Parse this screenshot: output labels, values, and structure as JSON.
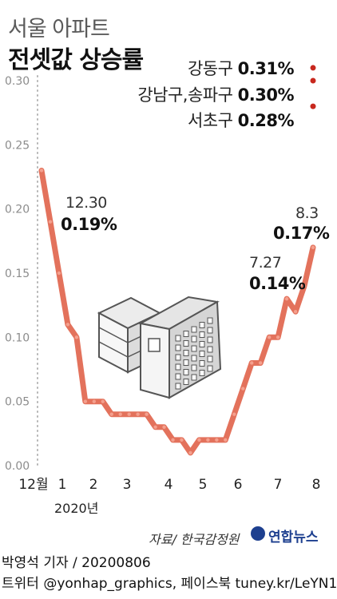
{
  "header": {
    "title_line1": "서울 아파트",
    "title_line2": "전셋값 상승률"
  },
  "annotations": [
    {
      "district": "강동구",
      "value": "0.31%"
    },
    {
      "district": "강남구,송파구",
      "value": "0.30%"
    },
    {
      "district": "서초구",
      "value": "0.28%"
    }
  ],
  "point_labels": [
    {
      "date": "12.30",
      "value": "0.19%"
    },
    {
      "date": "7.27",
      "value": "0.14%"
    },
    {
      "date": "8.3",
      "value": "0.17%"
    }
  ],
  "footer": {
    "source": "자료/ 한국감정원",
    "agency": "연합뉴스",
    "credit_line1": "박영석 기자 / 20200806",
    "credit_line2": "트위터 @yonhap_graphics, 페이스북 tuney.kr/LeYN1"
  },
  "chart_data": {
    "type": "line",
    "title": "서울 아파트 전셋값 상승률",
    "ylim": [
      0,
      0.3
    ],
    "yticks": [
      "0.00",
      "0.05",
      "0.10",
      "0.15",
      "0.20",
      "0.25",
      "0.30"
    ],
    "xticks": [
      "12월",
      "1",
      "2",
      "3",
      "4",
      "5",
      "6",
      "7",
      "8"
    ],
    "year_label": "2020년",
    "series": [
      {
        "values": [
          0.23,
          0.19,
          0.15,
          0.11,
          0.1,
          0.05,
          0.05,
          0.05,
          0.04,
          0.04,
          0.04,
          0.04,
          0.04,
          0.03,
          0.03,
          0.02,
          0.02,
          0.01,
          0.02,
          0.02,
          0.02,
          0.02,
          0.04,
          0.06,
          0.08,
          0.08,
          0.1,
          0.1,
          0.13,
          0.12,
          0.14,
          0.17
        ]
      }
    ],
    "highlighted_points": [
      {
        "index": 1,
        "value": 0.19
      },
      {
        "index": 30,
        "value": 0.14
      },
      {
        "index": 31,
        "value": 0.17
      }
    ],
    "district_points": [
      0.31,
      0.3,
      0.28
    ],
    "grid": false,
    "line_color": "#e0634a",
    "dot_color": "#c8281e"
  }
}
